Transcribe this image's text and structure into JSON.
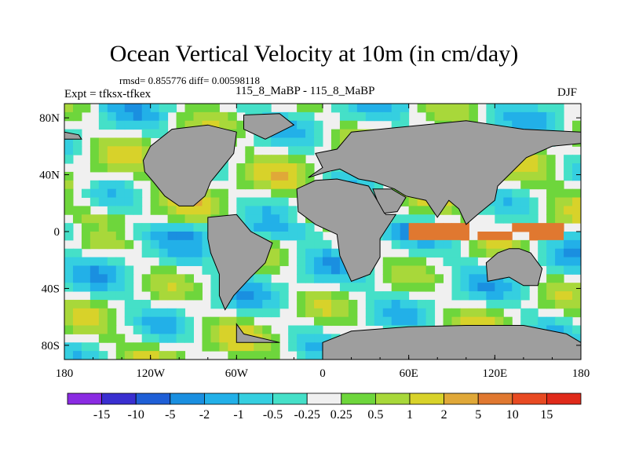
{
  "chart_data": {
    "type": "heatmap",
    "title": "Ocean Vertical Velocity at 10m (in cm/day)",
    "stats_text": "rmsd= 0.855776  diff= 0.00598118",
    "left_label": "Expt = tfksx-tfkex",
    "center_label": "115_8_MaBP - 115_8_MaBP",
    "right_label": "DJF",
    "x_range": [
      -180,
      180
    ],
    "y_range": [
      -90,
      90
    ],
    "x_ticks": [
      {
        "value": -180,
        "label": "180"
      },
      {
        "value": -120,
        "label": "120W"
      },
      {
        "value": -60,
        "label": "60W"
      },
      {
        "value": 0,
        "label": "0"
      },
      {
        "value": 60,
        "label": "60E"
      },
      {
        "value": 120,
        "label": "120E"
      },
      {
        "value": 180,
        "label": "180"
      }
    ],
    "y_ticks": [
      {
        "value": 80,
        "label": "80N"
      },
      {
        "value": 40,
        "label": "40N"
      },
      {
        "value": 0,
        "label": "0"
      },
      {
        "value": -40,
        "label": "40S"
      },
      {
        "value": -80,
        "label": "80S"
      }
    ],
    "colorbar": {
      "levels": [
        "-15",
        "-10",
        "-5",
        "-2",
        "-1",
        "-0.5",
        "-0.25",
        "0.25",
        "0.5",
        "1",
        "2",
        "5",
        "10",
        "15"
      ],
      "colors": [
        "#8a2be2",
        "#3a2fd0",
        "#1f5fd6",
        "#1a8fe0",
        "#22b0e8",
        "#35cfe0",
        "#45e0c8",
        "#f0f0f0",
        "#6ed63c",
        "#a8d83a",
        "#d8d22a",
        "#e0a838",
        "#e07830",
        "#e84a22",
        "#e02a1a"
      ]
    },
    "land_color": "#9e9e9e",
    "ocean_background": "#f0f0f0",
    "regions": [
      {
        "name": "south-america",
        "lon_range": [
          -80,
          -35
        ],
        "lat_range": [
          -55,
          12
        ]
      },
      {
        "name": "north-america",
        "lon_range": [
          -125,
          -60
        ],
        "lat_range": [
          15,
          72
        ]
      },
      {
        "name": "africa",
        "lon_range": [
          -18,
          50
        ],
        "lat_range": [
          -35,
          35
        ]
      },
      {
        "name": "eurasia",
        "lon_range": [
          20,
          180
        ],
        "lat_range": [
          30,
          80
        ]
      },
      {
        "name": "australia",
        "lon_range": [
          113,
          153
        ],
        "lat_range": [
          -40,
          -10
        ]
      },
      {
        "name": "antarctica",
        "lon_range": [
          0,
          180
        ],
        "lat_range": [
          -90,
          -65
        ]
      }
    ]
  }
}
